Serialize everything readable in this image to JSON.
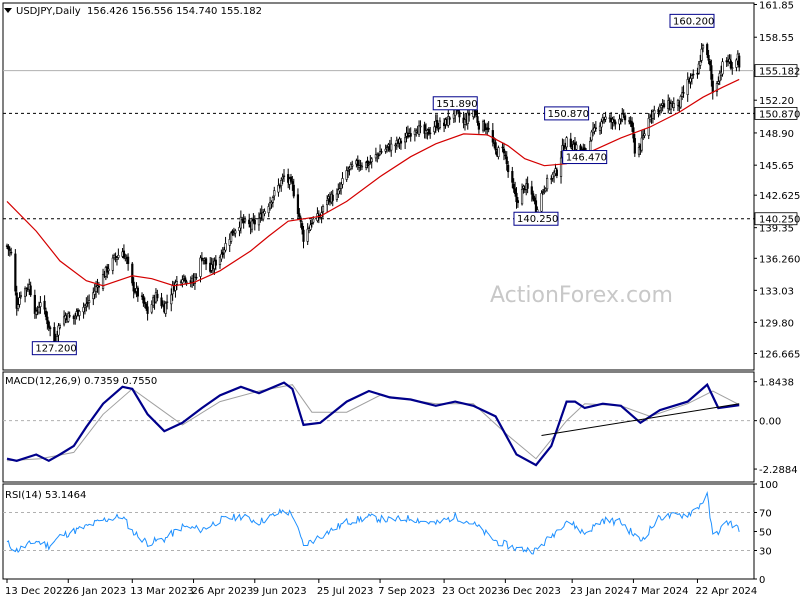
{
  "header": {
    "symbol": "USDJPY,Daily",
    "ohlc": "156.426 156.556 154.740 155.182"
  },
  "watermark": "ActionForex.com",
  "colors": {
    "price": "#000000",
    "ma": "#d40000",
    "macd": "#00008b",
    "signal": "#a0a0a0",
    "rsi": "#1e90ff",
    "box_border": "#00008b",
    "box_bg": "#ffffff"
  },
  "chart_data": [
    {
      "type": "candlestick",
      "name": "price",
      "ylim": [
        125.0,
        162.0
      ],
      "yticks": [
        "161.85",
        "158.55",
        "155.182",
        "152.20",
        "150.870",
        "148.90",
        "145.65",
        "142.625",
        "140.250",
        "139.35",
        "136.260",
        "133.03",
        "129.80",
        "126.665"
      ],
      "ytick_values": [
        161.85,
        158.55,
        155.182,
        152.2,
        150.87,
        148.9,
        145.65,
        142.625,
        140.25,
        139.35,
        136.26,
        133.03,
        129.8,
        126.665
      ],
      "current_price": 155.182,
      "horizontal_levels": [
        150.87,
        140.25
      ],
      "annotations": [
        {
          "label": "127.200",
          "value": 127.2,
          "date": "2023-01-16"
        },
        {
          "label": "151.890",
          "value": 151.89,
          "date": "2023-10-31"
        },
        {
          "label": "140.250",
          "value": 140.25,
          "date": "2023-12-28"
        },
        {
          "label": "150.870",
          "value": 150.87,
          "date": "2024-01-19"
        },
        {
          "label": "146.470",
          "value": 146.47,
          "date": "2024-02-01"
        },
        {
          "label": "160.200",
          "value": 160.2,
          "date": "2024-04-29"
        }
      ],
      "series_points": [
        [
          "2022-12-13",
          137.5
        ],
        [
          "2022-12-16",
          136.7
        ],
        [
          "2022-12-20",
          131.5
        ],
        [
          "2022-12-23",
          132.8
        ],
        [
          "2022-12-29",
          133.5
        ],
        [
          "2023-01-03",
          130.5
        ],
        [
          "2023-01-06",
          132.0
        ],
        [
          "2023-01-12",
          129.5
        ],
        [
          "2023-01-16",
          127.8
        ],
        [
          "2023-01-20",
          129.8
        ],
        [
          "2023-01-24",
          130.5
        ],
        [
          "2023-01-30",
          130.2
        ],
        [
          "2023-02-03",
          131.2
        ],
        [
          "2023-02-08",
          131.5
        ],
        [
          "2023-02-14",
          133.0
        ],
        [
          "2023-02-20",
          134.5
        ],
        [
          "2023-02-28",
          136.2
        ],
        [
          "2023-03-06",
          137.0
        ],
        [
          "2023-03-09",
          136.0
        ],
        [
          "2023-03-13",
          133.5
        ],
        [
          "2023-03-20",
          132.0
        ],
        [
          "2023-03-24",
          130.8
        ],
        [
          "2023-03-30",
          132.5
        ],
        [
          "2023-04-05",
          131.3
        ],
        [
          "2023-04-12",
          133.5
        ],
        [
          "2023-04-18",
          134.5
        ],
        [
          "2023-04-26",
          133.8
        ],
        [
          "2023-05-02",
          136.5
        ],
        [
          "2023-05-08",
          135.0
        ],
        [
          "2023-05-15",
          136.5
        ],
        [
          "2023-05-22",
          138.5
        ],
        [
          "2023-05-30",
          140.0
        ],
        [
          "2023-06-06",
          139.5
        ],
        [
          "2023-06-12",
          140.2
        ],
        [
          "2023-06-19",
          141.8
        ],
        [
          "2023-06-26",
          143.5
        ],
        [
          "2023-06-30",
          144.5
        ],
        [
          "2023-07-06",
          143.5
        ],
        [
          "2023-07-11",
          140.5
        ],
        [
          "2023-07-14",
          138.3
        ],
        [
          "2023-07-20",
          140.0
        ],
        [
          "2023-07-26",
          140.5
        ],
        [
          "2023-07-31",
          142.3
        ],
        [
          "2023-08-07",
          142.5
        ],
        [
          "2023-08-14",
          145.0
        ],
        [
          "2023-08-22",
          145.8
        ],
        [
          "2023-08-30",
          145.8
        ],
        [
          "2023-09-07",
          147.0
        ],
        [
          "2023-09-14",
          147.5
        ],
        [
          "2023-09-22",
          148.0
        ],
        [
          "2023-09-29",
          149.0
        ],
        [
          "2023-10-03",
          149.5
        ],
        [
          "2023-10-10",
          148.7
        ],
        [
          "2023-10-17",
          149.8
        ],
        [
          "2023-10-23",
          149.7
        ],
        [
          "2023-10-31",
          151.2
        ],
        [
          "2023-11-06",
          149.8
        ],
        [
          "2023-11-13",
          151.5
        ],
        [
          "2023-11-17",
          149.7
        ],
        [
          "2023-11-23",
          149.5
        ],
        [
          "2023-11-29",
          147.0
        ],
        [
          "2023-12-05",
          147.2
        ],
        [
          "2023-12-08",
          145.0
        ],
        [
          "2023-12-14",
          142.0
        ],
        [
          "2023-12-20",
          143.5
        ],
        [
          "2023-12-26",
          142.5
        ],
        [
          "2023-12-28",
          141.2
        ],
        [
          "2024-01-03",
          143.5
        ],
        [
          "2024-01-08",
          144.5
        ],
        [
          "2024-01-12",
          145.0
        ],
        [
          "2024-01-16",
          147.2
        ],
        [
          "2024-01-19",
          148.0
        ],
        [
          "2024-01-25",
          147.6
        ],
        [
          "2024-02-01",
          146.8
        ],
        [
          "2024-02-05",
          148.5
        ],
        [
          "2024-02-09",
          149.2
        ],
        [
          "2024-02-14",
          150.5
        ],
        [
          "2024-02-21",
          150.0
        ],
        [
          "2024-02-27",
          150.5
        ],
        [
          "2024-03-05",
          150.0
        ],
        [
          "2024-03-08",
          147.2
        ],
        [
          "2024-03-12",
          147.5
        ],
        [
          "2024-03-19",
          150.8
        ],
        [
          "2024-03-26",
          151.5
        ],
        [
          "2024-04-01",
          151.7
        ],
        [
          "2024-04-09",
          151.8
        ],
        [
          "2024-04-15",
          154.0
        ],
        [
          "2024-04-22",
          154.8
        ],
        [
          "2024-04-26",
          158.0
        ],
        [
          "2024-04-29",
          156.5
        ],
        [
          "2024-05-01",
          155.5
        ],
        [
          "2024-05-03",
          153.0
        ],
        [
          "2024-05-07",
          154.5
        ],
        [
          "2024-05-10",
          155.7
        ],
        [
          "2024-05-14",
          156.2
        ],
        [
          "2024-05-17",
          155.6
        ],
        [
          "2024-05-21",
          156.4
        ],
        [
          "2024-05-22",
          155.18
        ]
      ],
      "ma_points": [
        [
          "2022-12-13",
          142.0
        ],
        [
          "2023-01-03",
          139.0
        ],
        [
          "2023-01-20",
          136.0
        ],
        [
          "2023-02-08",
          134.0
        ],
        [
          "2023-02-20",
          133.5
        ],
        [
          "2023-03-13",
          134.5
        ],
        [
          "2023-03-27",
          134.2
        ],
        [
          "2023-04-12",
          133.5
        ],
        [
          "2023-04-26",
          133.8
        ],
        [
          "2023-05-15",
          135.0
        ],
        [
          "2023-06-06",
          137.0
        ],
        [
          "2023-06-19",
          138.5
        ],
        [
          "2023-07-03",
          140.0
        ],
        [
          "2023-07-26",
          140.5
        ],
        [
          "2023-08-14",
          142.0
        ],
        [
          "2023-09-07",
          144.5
        ],
        [
          "2023-09-29",
          146.5
        ],
        [
          "2023-10-17",
          147.8
        ],
        [
          "2023-11-06",
          148.8
        ],
        [
          "2023-11-23",
          148.7
        ],
        [
          "2023-12-08",
          147.6
        ],
        [
          "2023-12-20",
          146.3
        ],
        [
          "2024-01-03",
          145.6
        ],
        [
          "2024-01-19",
          145.8
        ],
        [
          "2024-02-05",
          147.0
        ],
        [
          "2024-02-27",
          148.4
        ],
        [
          "2024-03-19",
          149.5
        ],
        [
          "2024-04-09",
          151.0
        ],
        [
          "2024-04-26",
          152.5
        ],
        [
          "2024-05-10",
          153.5
        ],
        [
          "2024-05-22",
          154.3
        ]
      ]
    },
    {
      "type": "line",
      "name": "macd",
      "label": "MACD(12,26,9) 0.7359 0.7550",
      "ylim": [
        -2.9,
        2.3
      ],
      "yticks": [
        "1.8438",
        "0.00",
        "-2.2884"
      ],
      "ytick_values": [
        1.8438,
        0.0,
        -2.2884
      ],
      "macd_points": [
        [
          "2022-12-13",
          -1.8
        ],
        [
          "2022-12-20",
          -1.9
        ],
        [
          "2023-01-03",
          -1.6
        ],
        [
          "2023-01-12",
          -1.9
        ],
        [
          "2023-01-20",
          -1.6
        ],
        [
          "2023-01-30",
          -1.2
        ],
        [
          "2023-02-08",
          -0.3
        ],
        [
          "2023-02-20",
          0.8
        ],
        [
          "2023-03-06",
          1.6
        ],
        [
          "2023-03-13",
          1.5
        ],
        [
          "2023-03-24",
          0.3
        ],
        [
          "2023-04-05",
          -0.5
        ],
        [
          "2023-04-18",
          -0.1
        ],
        [
          "2023-05-02",
          0.6
        ],
        [
          "2023-05-15",
          1.2
        ],
        [
          "2023-05-30",
          1.6
        ],
        [
          "2023-06-12",
          1.3
        ],
        [
          "2023-06-30",
          1.8
        ],
        [
          "2023-07-06",
          1.5
        ],
        [
          "2023-07-14",
          -0.2
        ],
        [
          "2023-07-26",
          -0.1
        ],
        [
          "2023-08-14",
          0.9
        ],
        [
          "2023-08-30",
          1.4
        ],
        [
          "2023-09-14",
          1.1
        ],
        [
          "2023-09-29",
          1.0
        ],
        [
          "2023-10-17",
          0.7
        ],
        [
          "2023-10-31",
          0.9
        ],
        [
          "2023-11-13",
          0.7
        ],
        [
          "2023-11-29",
          0.2
        ],
        [
          "2023-12-14",
          -1.6
        ],
        [
          "2023-12-28",
          -2.1
        ],
        [
          "2024-01-08",
          -1.2
        ],
        [
          "2024-01-19",
          0.9
        ],
        [
          "2024-01-25",
          0.9
        ],
        [
          "2024-02-01",
          0.6
        ],
        [
          "2024-02-14",
          0.8
        ],
        [
          "2024-02-27",
          0.7
        ],
        [
          "2024-03-12",
          -0.1
        ],
        [
          "2024-03-26",
          0.5
        ],
        [
          "2024-04-15",
          0.9
        ],
        [
          "2024-04-29",
          1.7
        ],
        [
          "2024-05-07",
          0.6
        ],
        [
          "2024-05-22",
          0.7359
        ]
      ],
      "signal_points": [
        [
          "2022-12-13",
          -1.9
        ],
        [
          "2023-01-06",
          -1.8
        ],
        [
          "2023-01-30",
          -1.5
        ],
        [
          "2023-02-20",
          0.3
        ],
        [
          "2023-03-13",
          1.5
        ],
        [
          "2023-03-30",
          0.7
        ],
        [
          "2023-04-18",
          -0.2
        ],
        [
          "2023-05-15",
          0.9
        ],
        [
          "2023-06-12",
          1.4
        ],
        [
          "2023-07-06",
          1.7
        ],
        [
          "2023-07-20",
          0.4
        ],
        [
          "2023-08-14",
          0.4
        ],
        [
          "2023-09-07",
          1.2
        ],
        [
          "2023-10-17",
          0.8
        ],
        [
          "2023-11-13",
          0.8
        ],
        [
          "2023-12-08",
          -0.7
        ],
        [
          "2023-12-28",
          -1.8
        ],
        [
          "2024-01-19",
          0.0
        ],
        [
          "2024-02-01",
          0.8
        ],
        [
          "2024-02-27",
          0.7
        ],
        [
          "2024-03-19",
          0.2
        ],
        [
          "2024-04-15",
          0.8
        ],
        [
          "2024-05-03",
          1.4
        ],
        [
          "2024-05-22",
          0.755
        ]
      ],
      "trendline": [
        [
          "2024-01-01",
          -0.7
        ],
        [
          "2024-05-22",
          0.8
        ]
      ]
    },
    {
      "type": "line",
      "name": "rsi",
      "label": "RSI(14) 53.1464",
      "ylim": [
        0,
        100
      ],
      "yticks": [
        "100",
        "70",
        "50",
        "30",
        "0"
      ],
      "ytick_values": [
        100,
        70,
        50,
        30,
        0
      ],
      "levels": [
        70,
        30
      ],
      "rsi_points": [
        [
          "2022-12-13",
          38
        ],
        [
          "2022-12-20",
          30
        ],
        [
          "2023-01-03",
          40
        ],
        [
          "2023-01-12",
          35
        ],
        [
          "2023-01-20",
          45
        ],
        [
          "2023-02-08",
          55
        ],
        [
          "2023-02-20",
          62
        ],
        [
          "2023-03-06",
          66
        ],
        [
          "2023-03-13",
          50
        ],
        [
          "2023-03-24",
          38
        ],
        [
          "2023-04-05",
          42
        ],
        [
          "2023-04-18",
          55
        ],
        [
          "2023-05-02",
          52
        ],
        [
          "2023-05-15",
          62
        ],
        [
          "2023-05-30",
          66
        ],
        [
          "2023-06-12",
          60
        ],
        [
          "2023-06-30",
          72
        ],
        [
          "2023-07-06",
          68
        ],
        [
          "2023-07-14",
          35
        ],
        [
          "2023-07-26",
          45
        ],
        [
          "2023-08-14",
          60
        ],
        [
          "2023-08-30",
          65
        ],
        [
          "2023-09-14",
          62
        ],
        [
          "2023-09-29",
          64
        ],
        [
          "2023-10-17",
          58
        ],
        [
          "2023-10-31",
          66
        ],
        [
          "2023-11-13",
          58
        ],
        [
          "2023-11-29",
          40
        ],
        [
          "2023-12-14",
          32
        ],
        [
          "2023-12-28",
          30
        ],
        [
          "2024-01-08",
          45
        ],
        [
          "2024-01-19",
          62
        ],
        [
          "2024-02-01",
          48
        ],
        [
          "2024-02-14",
          62
        ],
        [
          "2024-02-27",
          60
        ],
        [
          "2024-03-12",
          40
        ],
        [
          "2024-03-26",
          65
        ],
        [
          "2024-04-15",
          68
        ],
        [
          "2024-04-22",
          75
        ],
        [
          "2024-04-29",
          88
        ],
        [
          "2024-05-03",
          45
        ],
        [
          "2024-05-14",
          60
        ],
        [
          "2024-05-22",
          53.1464
        ]
      ]
    }
  ],
  "xaxis": {
    "ticks": [
      {
        "label": "13 Dec 2022",
        "date": "2022-12-13"
      },
      {
        "label": "26 Jan 2023",
        "date": "2023-01-26"
      },
      {
        "label": "13 Mar 2023",
        "date": "2023-03-13"
      },
      {
        "label": "26 Apr 2023",
        "date": "2023-04-26"
      },
      {
        "label": "9 Jun 2023",
        "date": "2023-06-09"
      },
      {
        "label": "25 Jul 2023",
        "date": "2023-07-25"
      },
      {
        "label": "7 Sep 2023",
        "date": "2023-09-07"
      },
      {
        "label": "23 Oct 2023",
        "date": "2023-10-23"
      },
      {
        "label": "6 Dec 2023",
        "date": "2023-12-06"
      },
      {
        "label": "23 Jan 2024",
        "date": "2024-01-23"
      },
      {
        "label": "7 Mar 2024",
        "date": "2024-03-07"
      },
      {
        "label": "22 Apr 2024",
        "date": "2024-04-22"
      }
    ]
  }
}
